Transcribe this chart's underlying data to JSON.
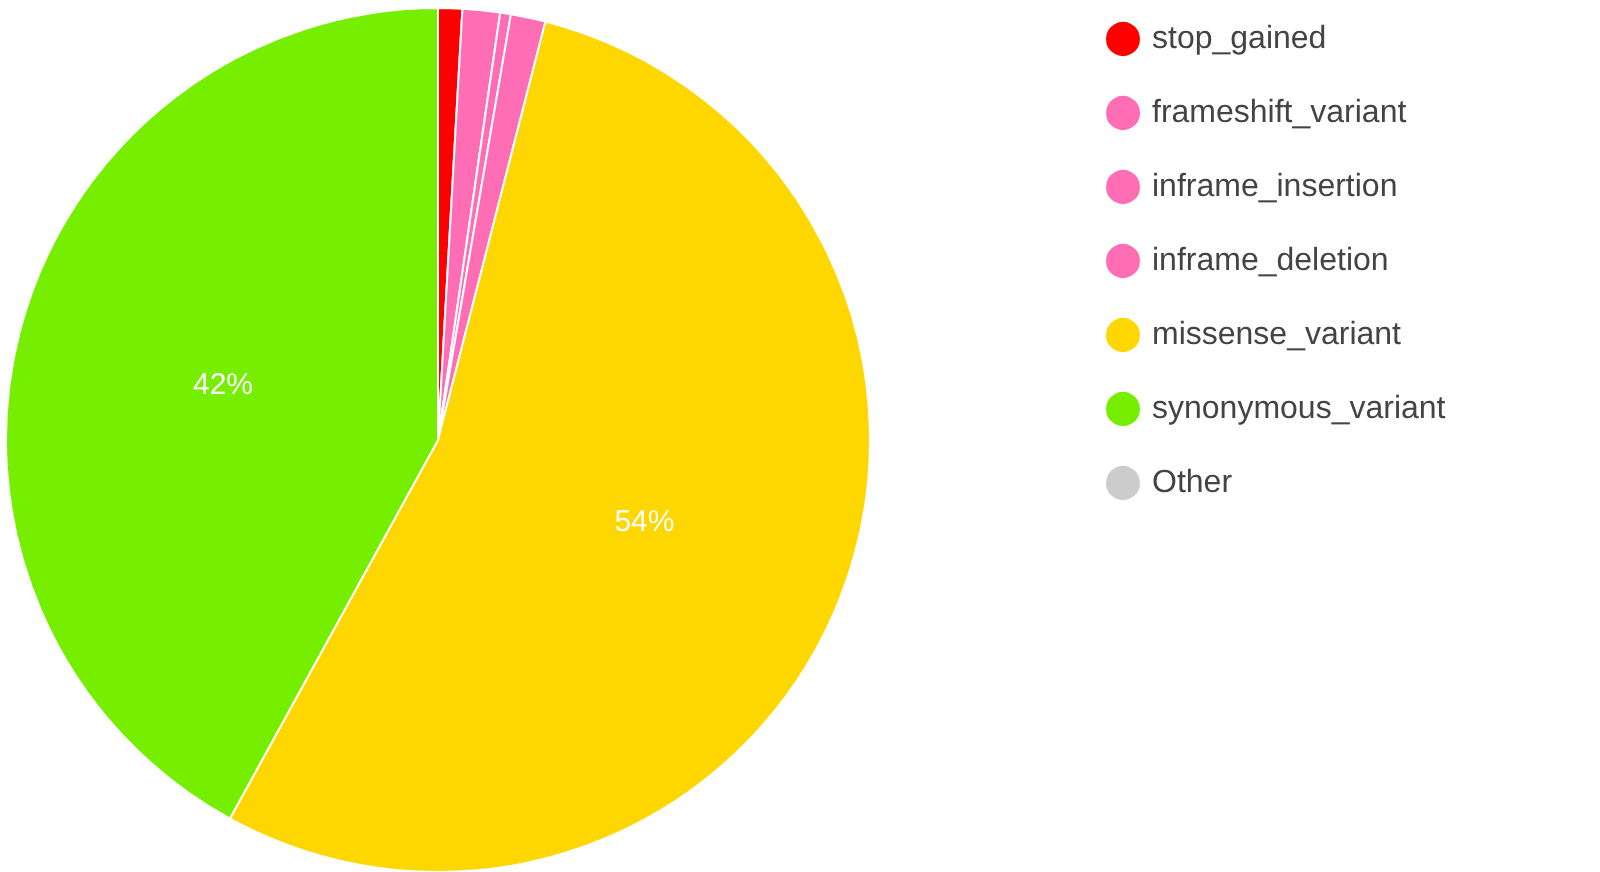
{
  "chart_data": {
    "type": "pie",
    "categories": [
      "stop_gained",
      "frameshift_variant",
      "inframe_insertion",
      "inframe_deletion",
      "missense_variant",
      "synonymous_variant",
      "Other"
    ],
    "values": [
      0.9,
      1.4,
      0.4,
      1.3,
      54,
      42,
      0
    ],
    "colors": [
      "#ff0000",
      "#ff6eb4",
      "#ff6eb4",
      "#ff6eb4",
      "#ffd700",
      "#76ee00",
      "#cccccc"
    ],
    "value_labels": [
      null,
      null,
      null,
      null,
      "54%",
      "42%",
      null
    ],
    "legend": "right"
  }
}
